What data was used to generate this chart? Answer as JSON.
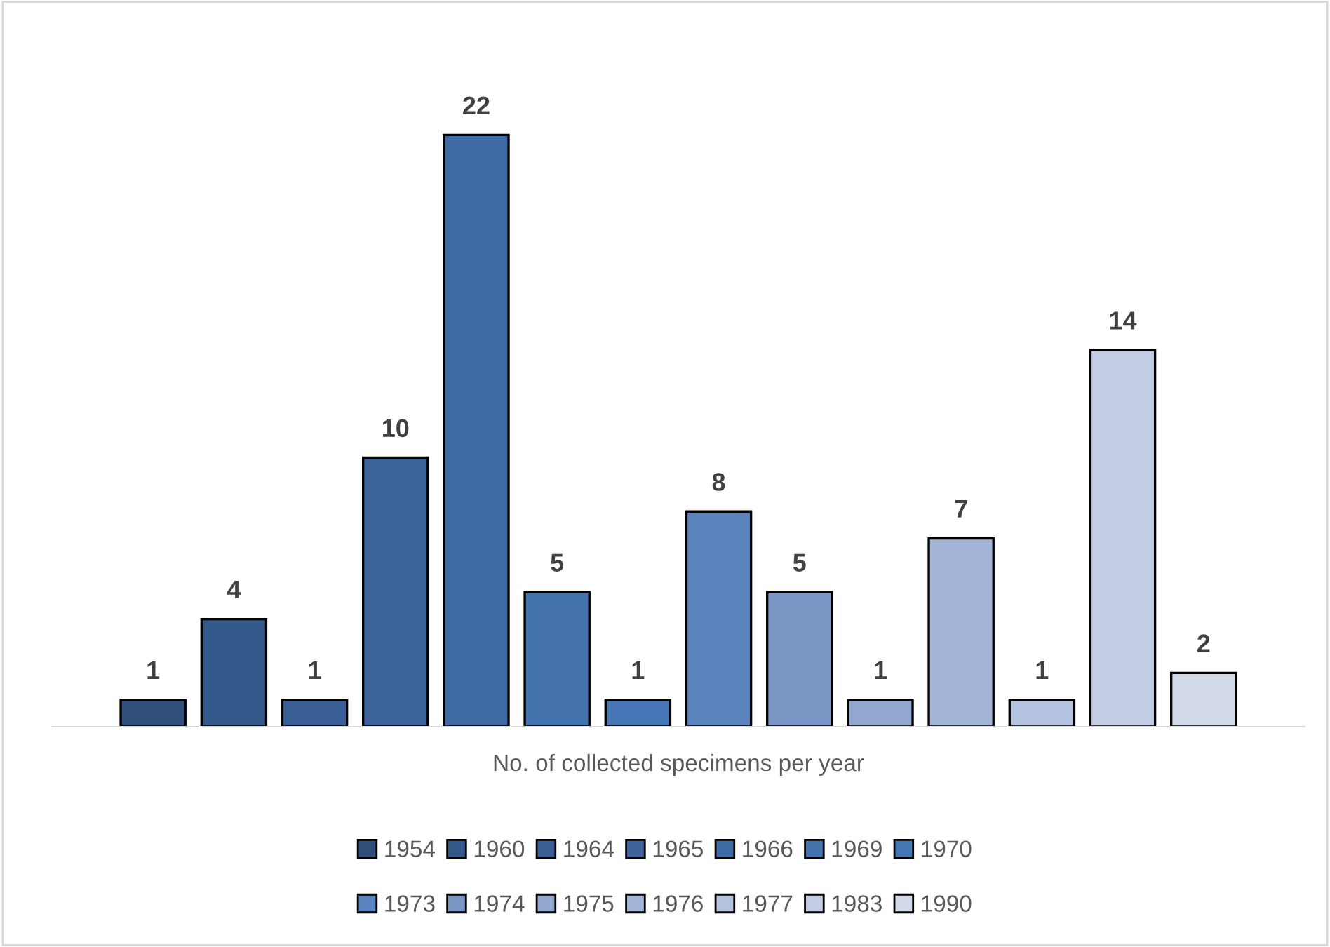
{
  "chart_data": {
    "type": "bar",
    "xlabel": "No. of collected specimens per year",
    "categories": [
      null
    ],
    "tick_labels": false,
    "data_labels": true,
    "grid": false,
    "legend": "bottom",
    "series": [
      {
        "name": "1954",
        "color": "#304f7a",
        "values": [
          1
        ]
      },
      {
        "name": "1960",
        "color": "#33588a",
        "values": [
          4
        ]
      },
      {
        "name": "1964",
        "color": "#395f96",
        "values": [
          1
        ]
      },
      {
        "name": "1965",
        "color": "#3d659c",
        "values": [
          10
        ]
      },
      {
        "name": "1966",
        "color": "#3f6ca5",
        "values": [
          22
        ]
      },
      {
        "name": "1969",
        "color": "#4372ad",
        "values": [
          5
        ]
      },
      {
        "name": "1970",
        "color": "#4676b5",
        "values": [
          1
        ]
      },
      {
        "name": "1973",
        "color": "#5b83be",
        "values": [
          8
        ]
      },
      {
        "name": "1974",
        "color": "#7b97c5",
        "values": [
          5
        ]
      },
      {
        "name": "1975",
        "color": "#93a8d0",
        "values": [
          1
        ]
      },
      {
        "name": "1976",
        "color": "#a3b6d8",
        "values": [
          7
        ]
      },
      {
        "name": "1977",
        "color": "#b3c2df",
        "values": [
          1
        ]
      },
      {
        "name": "1983",
        "color": "#c2cde3",
        "values": [
          14
        ]
      },
      {
        "name": "1990",
        "color": "#d2d9e8",
        "values": [
          2
        ]
      }
    ]
  }
}
